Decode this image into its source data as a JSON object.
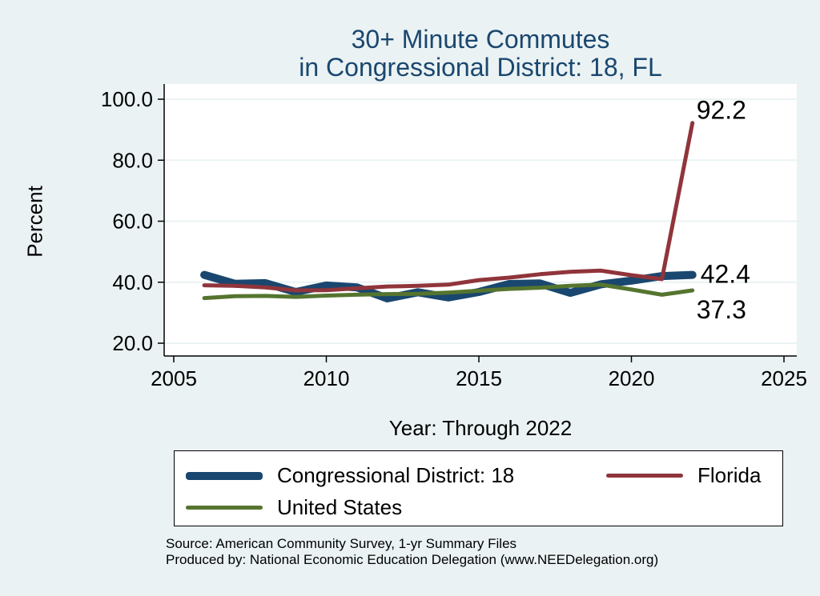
{
  "chart_data": {
    "type": "line",
    "title_line1": "30+ Minute Commutes",
    "title_line2": "in Congressional District:  18, FL",
    "xlabel": "Year: Through 2022",
    "ylabel": "Percent",
    "xlim": [
      2005,
      2025
    ],
    "ylim": [
      20,
      100
    ],
    "xticks": [
      "2005",
      "2010",
      "2015",
      "2020",
      "2025"
    ],
    "yticks": [
      "20.0",
      "40.0",
      "60.0",
      "80.0",
      "100.0"
    ],
    "grid": true,
    "legend_position": "bottom",
    "series": [
      {
        "name": "Congressional District:  18",
        "color": "#1a476f",
        "x": [
          2006,
          2007,
          2008,
          2009,
          2010,
          2011,
          2012,
          2013,
          2014,
          2015,
          2016,
          2017,
          2018,
          2019,
          2020,
          2021,
          2022
        ],
        "y": [
          42.4,
          39.5,
          39.7,
          36.8,
          38.9,
          38.3,
          34.7,
          36.7,
          35.0,
          36.8,
          39.4,
          39.6,
          36.5,
          39.3,
          40.5,
          42.0,
          42.4
        ],
        "end_label": "42.4"
      },
      {
        "name": "Florida",
        "color": "#90353b",
        "x": [
          2006,
          2007,
          2008,
          2009,
          2010,
          2011,
          2012,
          2013,
          2014,
          2015,
          2016,
          2017,
          2018,
          2019,
          2020,
          2021,
          2022
        ],
        "y": [
          39.0,
          38.8,
          38.3,
          37.3,
          37.4,
          38.0,
          38.6,
          38.8,
          39.2,
          40.7,
          41.5,
          42.6,
          43.4,
          43.8,
          42.3,
          41.0,
          92.2
        ],
        "end_label": "92.2"
      },
      {
        "name": "United States",
        "color": "#55752f",
        "x": [
          2006,
          2007,
          2008,
          2009,
          2010,
          2011,
          2012,
          2013,
          2014,
          2015,
          2016,
          2017,
          2018,
          2019,
          2020,
          2021,
          2022
        ],
        "y": [
          34.8,
          35.4,
          35.5,
          35.2,
          35.6,
          35.9,
          36.1,
          36.2,
          36.6,
          37.2,
          37.8,
          38.2,
          38.8,
          39.2,
          37.6,
          35.9,
          37.3
        ],
        "end_label": "37.3"
      }
    ]
  },
  "legend": {
    "items": [
      "Congressional District:  18",
      "Florida",
      "United States"
    ]
  },
  "source": {
    "line1": "Source: American Community Survey, 1-yr Summary Files",
    "line2": "Produced by: National Economic Education Delegation (www.NEEDelegation.org)"
  }
}
